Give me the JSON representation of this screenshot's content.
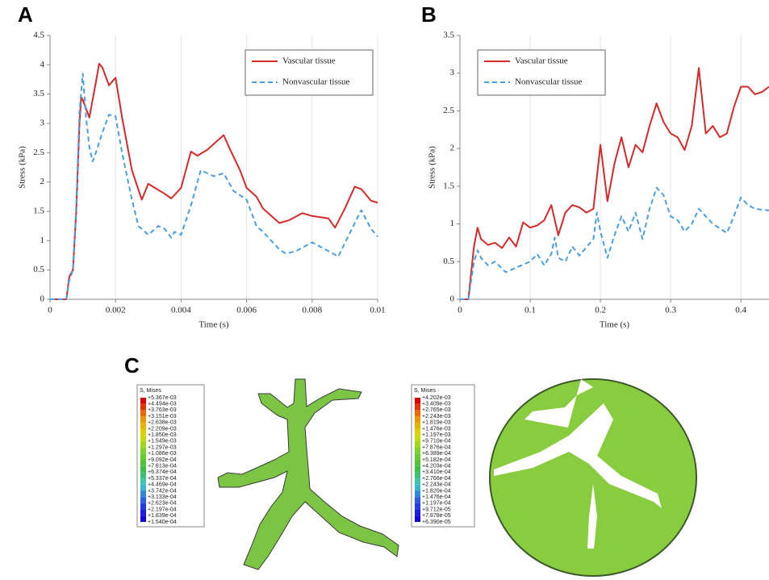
{
  "panel_labels": [
    "A",
    "B",
    "C"
  ],
  "chart_data": [
    {
      "type": "line",
      "xlabel": "Time (s)",
      "ylabel": "Stress (kPa)",
      "xlim": [
        0,
        0.01
      ],
      "xticks": [
        0,
        0.002,
        0.004,
        0.006,
        0.008,
        0.01
      ],
      "ylim": [
        0,
        4.5
      ],
      "yticks": [
        0,
        0.5,
        1,
        1.5,
        2,
        2.5,
        3,
        3.5,
        4,
        4.5
      ],
      "grid": "x",
      "legend": "upper right",
      "series": [
        {
          "name": "Vascular tissue",
          "color": "#d42a2a",
          "style": "solid",
          "x": [
            0,
            0.0005,
            0.00058,
            0.0006,
            0.0007,
            0.0008,
            0.0009,
            0.00095,
            0.001,
            0.0012,
            0.0014,
            0.0015,
            0.0016,
            0.0018,
            0.002,
            0.0022,
            0.0025,
            0.0028,
            0.003,
            0.0032,
            0.0035,
            0.0037,
            0.004,
            0.0043,
            0.0045,
            0.0048,
            0.005,
            0.0053,
            0.0055,
            0.0058,
            0.006,
            0.0063,
            0.0065,
            0.007,
            0.0073,
            0.0077,
            0.008,
            0.0085,
            0.0087,
            0.009,
            0.0093,
            0.0095,
            0.0098,
            0.01
          ],
          "values": [
            0,
            0,
            0.35,
            0.4,
            0.5,
            1.5,
            3.0,
            3.45,
            3.4,
            3.1,
            3.7,
            4.02,
            3.95,
            3.65,
            3.78,
            3.1,
            2.2,
            1.7,
            1.97,
            1.9,
            1.8,
            1.72,
            1.9,
            2.52,
            2.45,
            2.55,
            2.65,
            2.8,
            2.55,
            2.2,
            1.9,
            1.75,
            1.55,
            1.3,
            1.35,
            1.47,
            1.42,
            1.38,
            1.22,
            1.55,
            1.92,
            1.88,
            1.68,
            1.65
          ]
        },
        {
          "name": "Nonvascular tissue",
          "color": "#4a9ee0",
          "style": "dashed",
          "x": [
            0,
            0.0005,
            0.00058,
            0.0007,
            0.0008,
            0.0009,
            0.001,
            0.0011,
            0.0012,
            0.0013,
            0.0014,
            0.0016,
            0.0018,
            0.002,
            0.0022,
            0.0025,
            0.0027,
            0.003,
            0.0033,
            0.0035,
            0.0037,
            0.0038,
            0.004,
            0.0043,
            0.0046,
            0.005,
            0.0053,
            0.0056,
            0.006,
            0.0063,
            0.0065,
            0.007,
            0.0072,
            0.0075,
            0.008,
            0.0085,
            0.0088,
            0.0093,
            0.0095,
            0.0098,
            0.01
          ],
          "values": [
            0,
            0,
            0.3,
            0.5,
            1.6,
            3.2,
            3.85,
            3.1,
            2.6,
            2.35,
            2.5,
            2.85,
            3.15,
            3.12,
            2.5,
            1.7,
            1.25,
            1.1,
            1.25,
            1.2,
            1.05,
            1.15,
            1.1,
            1.6,
            2.2,
            2.1,
            2.15,
            1.85,
            1.7,
            1.25,
            1.15,
            0.85,
            0.78,
            0.82,
            0.97,
            0.82,
            0.73,
            1.3,
            1.52,
            1.2,
            1.07
          ]
        }
      ]
    },
    {
      "type": "line",
      "xlabel": "Time (s)",
      "ylabel": "Stress (kPa)",
      "xlim": [
        0,
        0.44
      ],
      "xticks": [
        0,
        0.1,
        0.2,
        0.3,
        0.4
      ],
      "ylim": [
        0,
        3.5
      ],
      "yticks": [
        0,
        0.5,
        1,
        1.5,
        2,
        2.5,
        3,
        3.5
      ],
      "grid": "x",
      "legend": "upper left",
      "series": [
        {
          "name": "Vascular tissue",
          "color": "#d42a2a",
          "style": "solid",
          "x": [
            0,
            0.012,
            0.02,
            0.025,
            0.03,
            0.04,
            0.05,
            0.06,
            0.07,
            0.08,
            0.09,
            0.1,
            0.11,
            0.12,
            0.13,
            0.14,
            0.15,
            0.16,
            0.17,
            0.18,
            0.19,
            0.2,
            0.21,
            0.22,
            0.23,
            0.24,
            0.25,
            0.26,
            0.27,
            0.28,
            0.29,
            0.3,
            0.31,
            0.32,
            0.33,
            0.34,
            0.35,
            0.36,
            0.37,
            0.38,
            0.39,
            0.4,
            0.41,
            0.42,
            0.43,
            0.44
          ],
          "values": [
            0,
            0,
            0.7,
            0.95,
            0.8,
            0.72,
            0.75,
            0.68,
            0.82,
            0.7,
            1.02,
            0.95,
            0.98,
            1.05,
            1.25,
            0.85,
            1.15,
            1.25,
            1.22,
            1.15,
            1.2,
            2.05,
            1.3,
            1.8,
            2.15,
            1.75,
            2.05,
            1.95,
            2.3,
            2.6,
            2.35,
            2.2,
            2.15,
            1.98,
            2.3,
            3.07,
            2.2,
            2.3,
            2.15,
            2.2,
            2.55,
            2.82,
            2.82,
            2.72,
            2.75,
            2.82
          ]
        },
        {
          "name": "Nonvascular tissue",
          "color": "#4a9ee0",
          "style": "dashed",
          "x": [
            0,
            0.012,
            0.02,
            0.025,
            0.03,
            0.04,
            0.05,
            0.065,
            0.08,
            0.1,
            0.11,
            0.12,
            0.13,
            0.135,
            0.14,
            0.15,
            0.16,
            0.17,
            0.19,
            0.195,
            0.2,
            0.21,
            0.22,
            0.23,
            0.24,
            0.25,
            0.26,
            0.27,
            0.28,
            0.29,
            0.3,
            0.31,
            0.32,
            0.33,
            0.34,
            0.35,
            0.36,
            0.38,
            0.39,
            0.4,
            0.41,
            0.42,
            0.44
          ],
          "values": [
            0,
            0,
            0.5,
            0.65,
            0.55,
            0.45,
            0.5,
            0.36,
            0.42,
            0.5,
            0.6,
            0.45,
            0.6,
            0.82,
            0.55,
            0.5,
            0.7,
            0.58,
            0.8,
            1.15,
            0.9,
            0.55,
            0.85,
            1.1,
            0.9,
            1.15,
            0.8,
            1.2,
            1.48,
            1.38,
            1.1,
            1.05,
            0.9,
            1.0,
            1.2,
            1.1,
            1.0,
            0.88,
            1.1,
            1.35,
            1.25,
            1.2,
            1.18
          ]
        }
      ]
    }
  ],
  "contour_legends": [
    {
      "title": "S, Mises",
      "labels": [
        "+5.367e-03",
        "+4.494e-03",
        "+3.763e-03",
        "+3.151e-03",
        "+2.638e-03",
        "+2.209e-03",
        "+1.850e-03",
        "+1.549e-03",
        "+1.297e-03",
        "+1.086e-03",
        "+9.092e-04",
        "+7.613e-04",
        "+6.374e-04",
        "+5.337e-04",
        "+4.469e-04",
        "+3.742e-04",
        "+3.133e-04",
        "+2.623e-04",
        "+2.197e-04",
        "+1.839e-04",
        "+1.540e-04"
      ]
    },
    {
      "title": "S, Mises",
      "labels": [
        "+4.202e-03",
        "+3.409e-03",
        "+2.765e-03",
        "+2.243e-03",
        "+1.819e-03",
        "+1.476e-03",
        "+1.197e-03",
        "+9.710e-04",
        "+7.876e-04",
        "+6.389e-04",
        "+5.182e-04",
        "+4.203e-04",
        "+3.410e-04",
        "+2.766e-04",
        "+2.243e-04",
        "+1.820e-04",
        "+1.476e-04",
        "+1.197e-04",
        "+9.712e-05",
        "+7.878e-05",
        "+6.390e-05"
      ]
    }
  ]
}
